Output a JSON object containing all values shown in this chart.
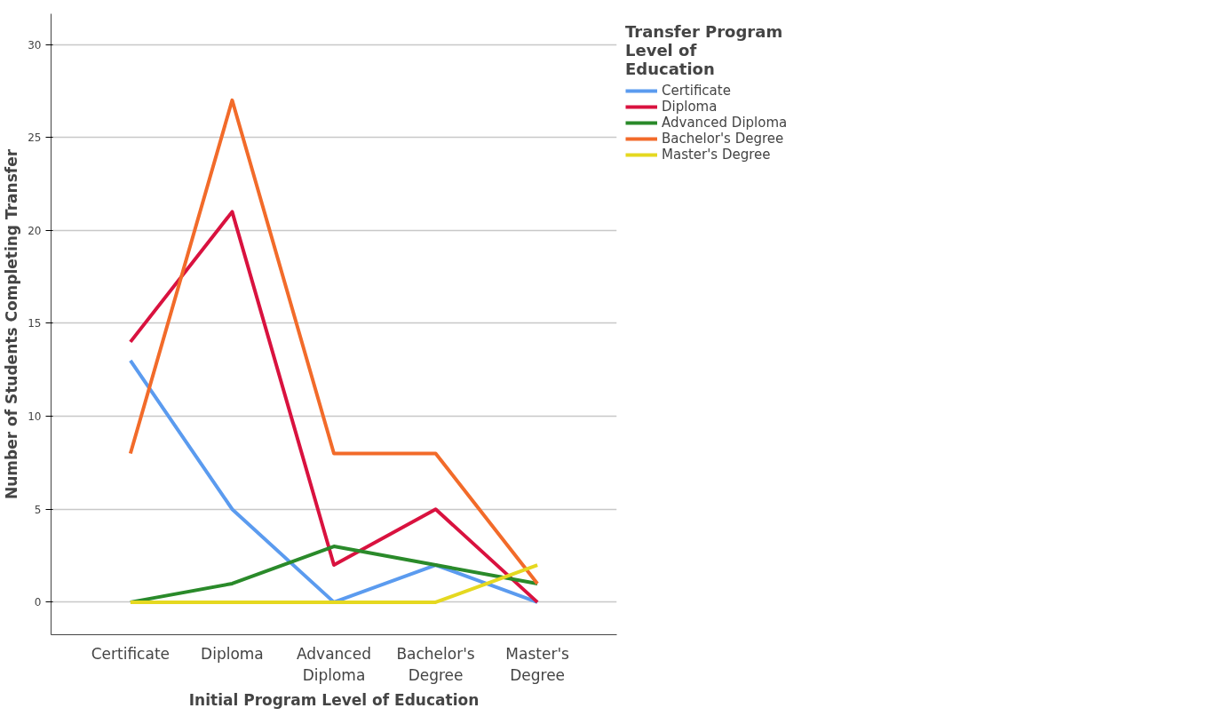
{
  "chart_data": {
    "type": "line",
    "xlabel": "Initial Program Level of Education",
    "ylabel": "Number of Students Completing Transfer",
    "legend_title": "Transfer Program Level of Education",
    "categories": [
      "Certificate",
      "Diploma",
      "Advanced Diploma",
      "Bachelor's Degree",
      "Master's Degree"
    ],
    "series": [
      {
        "name": "Certificate",
        "color": "#5b9bef",
        "values": [
          13,
          5,
          0,
          2,
          0
        ]
      },
      {
        "name": "Diploma",
        "color": "#d9123f",
        "values": [
          14,
          21,
          2,
          5,
          0
        ]
      },
      {
        "name": "Advanced Diploma",
        "color": "#2a8a2a",
        "values": [
          0,
          1,
          3,
          2,
          1
        ]
      },
      {
        "name": "Bachelor's Degree",
        "color": "#f26b2a",
        "values": [
          8,
          27,
          8,
          8,
          1
        ]
      },
      {
        "name": "Master's Degree",
        "color": "#e5d820",
        "values": [
          0,
          0,
          0,
          0,
          2
        ]
      }
    ],
    "ylim": [
      -1.75,
      31.65
    ],
    "yticks": [
      0,
      5,
      10,
      15,
      20,
      25,
      30
    ],
    "grid": "y",
    "legend": "top right",
    "marker": "none",
    "line_style": "solid"
  }
}
